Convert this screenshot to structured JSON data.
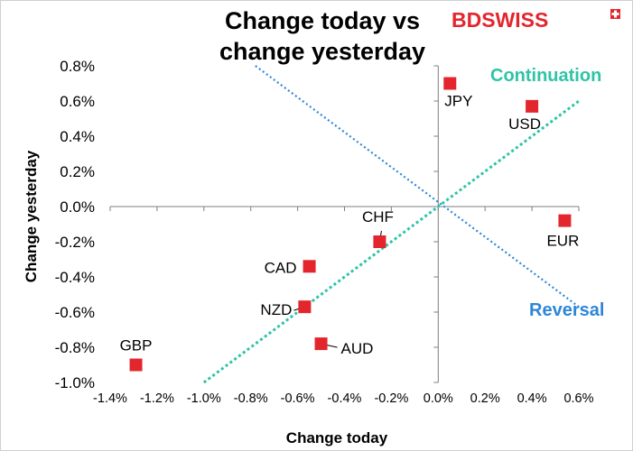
{
  "brand": {
    "text": "BDSWISS",
    "color": "#e3262e"
  },
  "chart_data": {
    "type": "scatter",
    "title_lines": [
      "Change today vs",
      "change yesterday"
    ],
    "xlabel": "Change today",
    "ylabel": "Change yesterday",
    "xlim": [
      -1.4,
      0.6
    ],
    "ylim": [
      -1.0,
      0.8
    ],
    "x_ticks": [
      -1.4,
      -1.2,
      -1.0,
      -0.8,
      -0.6,
      -0.4,
      -0.2,
      0.0,
      0.2,
      0.4,
      0.6
    ],
    "x_tick_labels": [
      "-1.4%",
      "-1.2%",
      "-1.0%",
      "-0.8%",
      "-0.6%",
      "-0.4%",
      "-0.2%",
      "0.0%",
      "0.2%",
      "0.4%",
      "0.6%"
    ],
    "y_ticks": [
      0.8,
      0.6,
      0.4,
      0.2,
      0.0,
      -0.2,
      -0.4,
      -0.6,
      -0.8,
      -1.0
    ],
    "y_tick_labels": [
      "0.8%",
      "0.6%",
      "0.4%",
      "0.2%",
      "0.0%",
      "-0.2%",
      "-0.4%",
      "-0.6%",
      "-0.8%",
      "-1.0%"
    ],
    "grid": false,
    "marker_color": "#e3262e",
    "points": [
      {
        "label": "JPY",
        "x": 0.05,
        "y": 0.7
      },
      {
        "label": "USD",
        "x": 0.4,
        "y": 0.57
      },
      {
        "label": "EUR",
        "x": 0.54,
        "y": -0.08
      },
      {
        "label": "CHF",
        "x": -0.25,
        "y": -0.2
      },
      {
        "label": "CAD",
        "x": -0.55,
        "y": -0.34
      },
      {
        "label": "NZD",
        "x": -0.57,
        "y": -0.57
      },
      {
        "label": "AUD",
        "x": -0.5,
        "y": -0.78
      },
      {
        "label": "GBP",
        "x": -1.29,
        "y": -0.9
      }
    ],
    "reference_lines": [
      {
        "name": "Continuation",
        "color": "#2ec4a6",
        "from": [
          -1.0,
          -1.0
        ],
        "to": [
          0.6,
          0.6
        ]
      },
      {
        "name": "Reversal",
        "color": "#2e86d8",
        "from": [
          -0.78,
          0.8
        ],
        "to": [
          0.6,
          -0.57
        ]
      }
    ],
    "annotations": [
      {
        "text": "Continuation",
        "color": "#2ec4a6"
      },
      {
        "text": "Reversal",
        "color": "#2e86d8"
      }
    ]
  }
}
